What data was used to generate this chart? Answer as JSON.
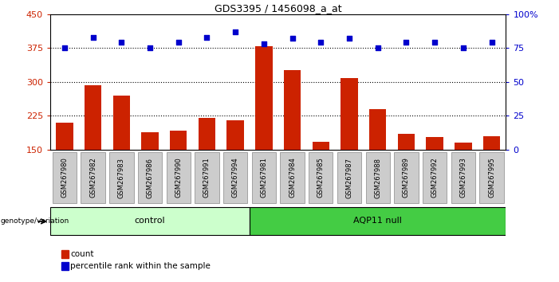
{
  "title": "GDS3395 / 1456098_a_at",
  "categories": [
    "GSM267980",
    "GSM267982",
    "GSM267983",
    "GSM267986",
    "GSM267990",
    "GSM267991",
    "GSM267994",
    "GSM267981",
    "GSM267984",
    "GSM267985",
    "GSM267987",
    "GSM267988",
    "GSM267989",
    "GSM267992",
    "GSM267993",
    "GSM267995"
  ],
  "bar_values": [
    210,
    293,
    270,
    188,
    192,
    220,
    215,
    378,
    325,
    167,
    308,
    240,
    185,
    178,
    165,
    180
  ],
  "dot_values": [
    75,
    83,
    79,
    75,
    79,
    83,
    87,
    78,
    82,
    79,
    82,
    75,
    79,
    79,
    75,
    79
  ],
  "control_count": 7,
  "aqp_count": 9,
  "control_label": "control",
  "aqp_label": "AQP11 null",
  "genotype_label": "genotype/variation",
  "bar_color": "#cc2200",
  "dot_color": "#0000cc",
  "ylim_left": [
    150,
    450
  ],
  "ylim_right": [
    0,
    100
  ],
  "yticks_left": [
    150,
    225,
    300,
    375,
    450
  ],
  "yticks_right": [
    0,
    25,
    50,
    75,
    100
  ],
  "ytick_labels_right": [
    "0",
    "25",
    "50",
    "75",
    "100%"
  ],
  "hlines": [
    225,
    300,
    375
  ],
  "legend_count": "count",
  "legend_pct": "percentile rank within the sample",
  "control_color": "#ccffcc",
  "aqp_color": "#44cc44",
  "tick_bg_color": "#cccccc",
  "bg_color": "#ffffff"
}
